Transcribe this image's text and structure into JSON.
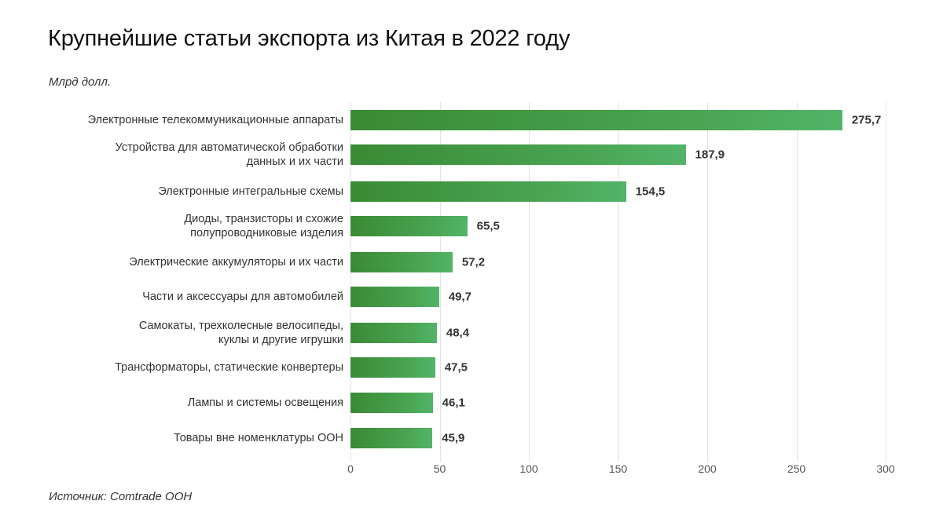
{
  "header": {
    "title": "Крупнейшие статьи экспорта из Китая в 2022 году",
    "unit": "Млрд долл."
  },
  "footer": {
    "source": "Источник: Comtrade ООН"
  },
  "colors": {
    "bar_start": "#3a8a35",
    "bar_end": "#52b46a",
    "grid": "#e3e3e3"
  },
  "chart_data": {
    "type": "bar",
    "orientation": "horizontal",
    "title": "Крупнейшие статьи экспорта из Китая в 2022 году",
    "xlabel": "",
    "ylabel": "Млрд долл.",
    "xlim": [
      0,
      300
    ],
    "xticks": [
      "0",
      "50",
      "100",
      "150",
      "200",
      "250",
      "300"
    ],
    "grid": true,
    "legend": null,
    "categories": [
      "Электронные телекоммуникационные аппараты",
      "Устройства для автоматической обработки данных и их части",
      "Электронные интегральные схемы",
      "Диоды, транзисторы и схожие полупроводниковые изделия",
      "Электрические аккумуляторы и их части",
      "Части и аксессуары для автомобилей",
      "Самокаты, трехколесные велосипеды, куклы и другие игрушки",
      "Трансформаторы, статические конвертеры",
      "Лампы и системы освещения",
      "Товары вне номенклатуры ООН"
    ],
    "values": [
      275.7,
      187.9,
      154.5,
      65.5,
      57.2,
      49.7,
      48.4,
      47.5,
      46.1,
      45.9
    ],
    "value_labels": [
      "275,7",
      "187,9",
      "154,5",
      "65,5",
      "57,2",
      "49,7",
      "48,4",
      "47,5",
      "46,1",
      "45,9"
    ],
    "source": "Источник: Comtrade ООН"
  },
  "rows": [
    {
      "line1": "Электронные телекоммуникационные аппараты",
      "line2": "",
      "label": "275,7"
    },
    {
      "line1": "Устройства для автоматической обработки",
      "line2": "данных и их части",
      "label": "187,9"
    },
    {
      "line1": "Электронные интегральные схемы",
      "line2": "",
      "label": "154,5"
    },
    {
      "line1": "Диоды, транзисторы и схожие",
      "line2": "полупроводниковые изделия",
      "label": "65,5"
    },
    {
      "line1": "Электрические аккумуляторы и их части",
      "line2": "",
      "label": "57,2"
    },
    {
      "line1": "Части и аксессуары для автомобилей",
      "line2": "",
      "label": "49,7"
    },
    {
      "line1": "Самокаты, трехколесные велосипеды,",
      "line2": "куклы и другие игрушки",
      "label": "48,4"
    },
    {
      "line1": "Трансформаторы, статические конвертеры",
      "line2": "",
      "label": "47,5"
    },
    {
      "line1": "Лампы и системы освещения",
      "line2": "",
      "label": "46,1"
    },
    {
      "line1": "Товары вне номенклатуры ООН",
      "line2": "",
      "label": "45,9"
    }
  ]
}
